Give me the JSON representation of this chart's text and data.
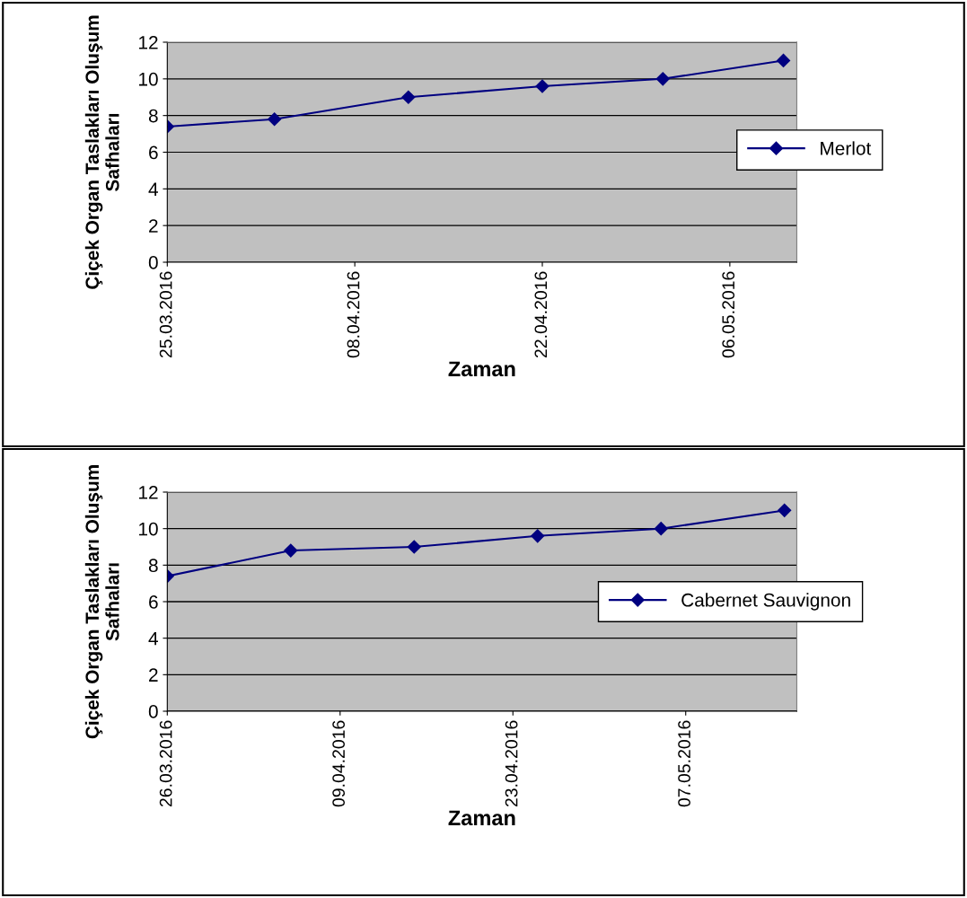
{
  "chart_data": [
    {
      "type": "line",
      "xlabel": "Zaman",
      "ylabel": "Çiçek Organ Taslakları Oluşum\nSafhaları",
      "x": [
        "2016-03-25",
        "2016-04-02",
        "2016-04-12",
        "2016-04-22",
        "2016-05-01",
        "2016-05-10"
      ],
      "series": [
        {
          "name": "Merlot",
          "color": "#000080",
          "values": [
            7.4,
            7.8,
            9.0,
            9.6,
            10.0,
            11.0
          ]
        }
      ],
      "xlim": [
        "2016-03-25",
        "2016-05-11"
      ],
      "xticks": [
        {
          "value": "2016-03-25",
          "label": "25.03.2016"
        },
        {
          "value": "2016-04-08",
          "label": "08.04.2016"
        },
        {
          "value": "2016-04-22",
          "label": "22.04.2016"
        },
        {
          "value": "2016-05-06",
          "label": "06.05.2016"
        }
      ],
      "ylim": [
        0,
        12
      ],
      "yticks": [
        0,
        2,
        4,
        6,
        8,
        10,
        12
      ],
      "grid": "y",
      "legend": "right",
      "marker": "diamond",
      "line_style": "solid"
    },
    {
      "type": "line",
      "xlabel": "Zaman",
      "ylabel": "Çiçek Organ Taslakları Oluşum\nSafhaları",
      "x": [
        "2016-03-26",
        "2016-04-05",
        "2016-04-15",
        "2016-04-25",
        "2016-05-05",
        "2016-05-15"
      ],
      "series": [
        {
          "name": "Cabernet Sauvignon",
          "color": "#000080",
          "values": [
            7.4,
            8.8,
            9.0,
            9.6,
            10.0,
            11.0
          ]
        }
      ],
      "xlim": [
        "2016-03-26",
        "2016-05-16"
      ],
      "xticks": [
        {
          "value": "2016-03-26",
          "label": "26.03.2016"
        },
        {
          "value": "2016-04-09",
          "label": "09.04.2016"
        },
        {
          "value": "2016-04-23",
          "label": "23.04.2016"
        },
        {
          "value": "2016-05-07",
          "label": "07.05.2016"
        }
      ],
      "ylim": [
        0,
        12
      ],
      "yticks": [
        0,
        2,
        4,
        6,
        8,
        10,
        12
      ],
      "grid": "y",
      "legend": "right",
      "marker": "diamond",
      "line_style": "solid"
    }
  ]
}
